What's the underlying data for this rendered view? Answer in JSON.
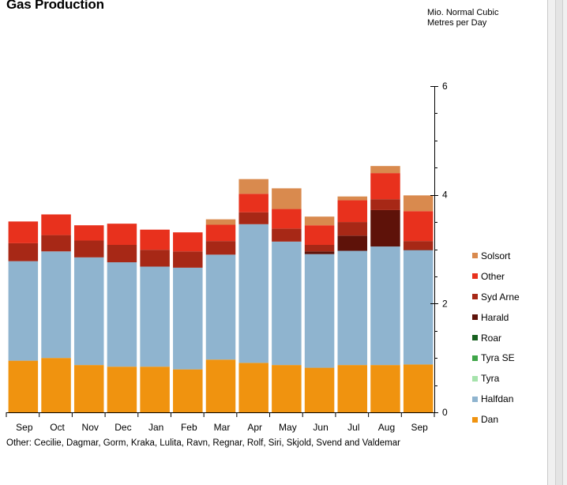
{
  "page": {
    "title": "Gas Production",
    "unit_label_line1": "Mio. Normal Cubic",
    "unit_label_line2": "Metres per Day",
    "footnote": "Other: Cecilie, Dagmar, Gorm, Kraka, Lulita, Ravn, Regnar, Rolf, Siri, Skjold, Svend and Valdemar"
  },
  "colors": {
    "Dan": "#f0930f",
    "Halfdan": "#8fb4cf",
    "Tyra": "#a6e3ac",
    "Tyra SE": "#3fa548",
    "Roar": "#17601f",
    "Harald": "#5e1209",
    "Syd Arne": "#a72816",
    "Other": "#e8311d",
    "Solsort": "#d98a4e"
  },
  "chart_data": {
    "type": "bar",
    "stacked": true,
    "categories": [
      "Sep",
      "Oct",
      "Nov",
      "Dec",
      "Jan",
      "Feb",
      "Mar",
      "Apr",
      "May",
      "Jun",
      "Jul",
      "Aug",
      "Sep"
    ],
    "series": [
      {
        "name": "Dan",
        "values": [
          0.95,
          1.0,
          0.87,
          0.84,
          0.84,
          0.79,
          0.97,
          0.91,
          0.87,
          0.82,
          0.87,
          0.87,
          0.88
        ]
      },
      {
        "name": "Halfdan",
        "values": [
          1.83,
          1.96,
          1.98,
          1.92,
          1.84,
          1.87,
          1.93,
          2.55,
          2.27,
          2.09,
          2.1,
          2.18,
          2.1
        ]
      },
      {
        "name": "Tyra",
        "values": [
          0,
          0,
          0,
          0,
          0,
          0,
          0,
          0,
          0,
          0,
          0,
          0,
          0
        ]
      },
      {
        "name": "Tyra SE",
        "values": [
          0,
          0,
          0,
          0,
          0,
          0,
          0,
          0,
          0,
          0,
          0,
          0,
          0
        ]
      },
      {
        "name": "Roar",
        "values": [
          0,
          0,
          0,
          0,
          0,
          0,
          0,
          0,
          0,
          0,
          0,
          0,
          0
        ]
      },
      {
        "name": "Harald",
        "values": [
          0,
          0,
          0,
          0,
          0,
          0,
          0,
          0,
          0,
          0.05,
          0.28,
          0.67,
          0.01
        ]
      },
      {
        "name": "Syd Arne",
        "values": [
          0.33,
          0.3,
          0.31,
          0.32,
          0.31,
          0.3,
          0.25,
          0.22,
          0.24,
          0.12,
          0.25,
          0.2,
          0.16
        ]
      },
      {
        "name": "Other",
        "values": [
          0.4,
          0.38,
          0.28,
          0.39,
          0.37,
          0.35,
          0.3,
          0.34,
          0.36,
          0.36,
          0.4,
          0.48,
          0.55
        ]
      },
      {
        "name": "Solsort",
        "values": [
          0,
          0,
          0,
          0,
          0,
          0,
          0.1,
          0.27,
          0.38,
          0.16,
          0.07,
          0.13,
          0.29
        ]
      }
    ],
    "legend_order": [
      "Solsort",
      "Other",
      "Syd Arne",
      "Harald",
      "Roar",
      "Tyra SE",
      "Tyra",
      "Halfdan",
      "Dan"
    ],
    "ylim": [
      0,
      6
    ],
    "yticks": [
      0,
      2,
      4,
      6
    ],
    "y_axis_side": "right",
    "grid": false,
    "legend_position": "right"
  }
}
